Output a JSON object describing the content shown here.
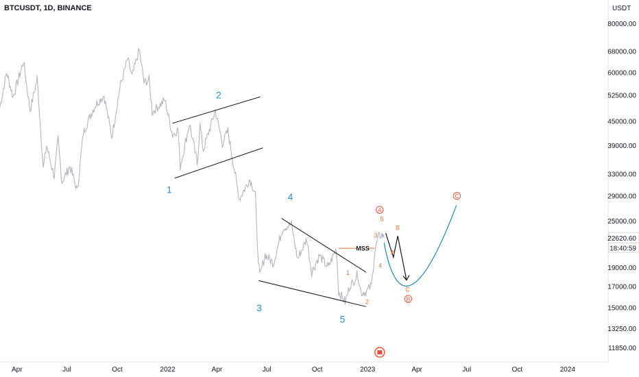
{
  "symbol_title": "BTCUSDT, 1D, BINANCE",
  "currency_label": "USDT",
  "chart_data": {
    "type": "line",
    "title": "BTCUSDT, 1D, BINANCE",
    "ylabel": "USDT",
    "y_scale": "log",
    "ylim": [
      10900,
      92000
    ],
    "xlim": [
      "2021-03-01",
      "2024-03-15"
    ],
    "x_ticks": [
      {
        "date": "2021-04-01",
        "label": "Apr"
      },
      {
        "date": "2021-07-01",
        "label": "Jul"
      },
      {
        "date": "2021-10-01",
        "label": "Oct"
      },
      {
        "date": "2022-01-01",
        "label": "2022"
      },
      {
        "date": "2022-04-01",
        "label": "Apr"
      },
      {
        "date": "2022-07-01",
        "label": "Jul"
      },
      {
        "date": "2022-10-01",
        "label": "Oct"
      },
      {
        "date": "2023-01-01",
        "label": "2023"
      },
      {
        "date": "2023-04-01",
        "label": "Apr"
      },
      {
        "date": "2023-07-01",
        "label": "Jul"
      },
      {
        "date": "2023-10-01",
        "label": "Oct"
      },
      {
        "date": "2024-01-01",
        "label": "2024"
      }
    ],
    "y_ticks": [
      80000,
      68000,
      60000,
      52500,
      45000,
      39000,
      33000,
      29000,
      25000,
      19000,
      17000,
      15000,
      13250,
      11850
    ],
    "y_tick_labels": [
      "80000.00",
      "68000.00",
      "60000.00",
      "52500.00",
      "45000.00",
      "39000.00",
      "33000.00",
      "29000.00",
      "25000.00",
      "19000.00",
      "17000.00",
      "15000.00",
      "13250.00",
      "11850.00"
    ],
    "last_price": {
      "value": 22620.6,
      "label": "22620.60",
      "countdown": "18:40:59",
      "color": "#131722"
    },
    "series": [
      {
        "color": "#b2b5be",
        "points": [
          [
            "2021-03-01",
            49000
          ],
          [
            "2021-03-13",
            60000
          ],
          [
            "2021-03-25",
            52000
          ],
          [
            "2021-04-13",
            64000
          ],
          [
            "2021-04-25",
            48000
          ],
          [
            "2021-05-08",
            58000
          ],
          [
            "2021-05-19",
            34000
          ],
          [
            "2021-05-25",
            39000
          ],
          [
            "2021-06-08",
            32500
          ],
          [
            "2021-06-15",
            40500
          ],
          [
            "2021-06-22",
            31500
          ],
          [
            "2021-07-07",
            34500
          ],
          [
            "2021-07-20",
            29800
          ],
          [
            "2021-07-31",
            42000
          ],
          [
            "2021-08-14",
            47000
          ],
          [
            "2021-08-22",
            49500
          ],
          [
            "2021-09-07",
            52500
          ],
          [
            "2021-09-21",
            41000
          ],
          [
            "2021-10-06",
            55000
          ],
          [
            "2021-10-20",
            65000
          ],
          [
            "2021-10-28",
            58500
          ],
          [
            "2021-11-10",
            68500
          ],
          [
            "2021-11-19",
            56500
          ],
          [
            "2021-11-28",
            57500
          ],
          [
            "2021-12-04",
            47500
          ],
          [
            "2021-12-27",
            51000
          ],
          [
            "2022-01-10",
            41500
          ],
          [
            "2022-01-20",
            43000
          ],
          [
            "2022-01-24",
            34500
          ],
          [
            "2022-02-10",
            44500
          ],
          [
            "2022-02-24",
            35000
          ],
          [
            "2022-03-01",
            44000
          ],
          [
            "2022-03-07",
            38000
          ],
          [
            "2022-03-29",
            48000
          ],
          [
            "2022-04-11",
            39500
          ],
          [
            "2022-04-21",
            42500
          ],
          [
            "2022-05-09",
            30000
          ],
          [
            "2022-05-12",
            28500
          ],
          [
            "2022-05-31",
            32000
          ],
          [
            "2022-06-10",
            29500
          ],
          [
            "2022-06-13",
            22500
          ],
          [
            "2022-06-18",
            18000
          ],
          [
            "2022-06-28",
            20500
          ],
          [
            "2022-07-13",
            19500
          ],
          [
            "2022-07-30",
            24000
          ],
          [
            "2022-08-15",
            24500
          ],
          [
            "2022-08-26",
            20000
          ],
          [
            "2022-09-12",
            22500
          ],
          [
            "2022-09-21",
            18500
          ],
          [
            "2022-10-05",
            20400
          ],
          [
            "2022-10-21",
            19000
          ],
          [
            "2022-11-05",
            21300
          ],
          [
            "2022-11-09",
            16500
          ],
          [
            "2022-11-21",
            15500
          ],
          [
            "2022-11-30",
            17150
          ],
          [
            "2022-12-05",
            17400
          ],
          [
            "2022-12-14",
            18300
          ],
          [
            "2022-12-20",
            16400
          ],
          [
            "2022-12-30",
            16500
          ],
          [
            "2023-01-08",
            17100
          ],
          [
            "2023-01-14",
            20900
          ],
          [
            "2023-01-21",
            22800
          ],
          [
            "2023-01-27",
            23100
          ],
          [
            "2023-01-31",
            22620.6
          ]
        ]
      }
    ],
    "annotations": {
      "blue_labels": [
        {
          "text": "1",
          "date": "2022-01-04",
          "price": 29500
        },
        {
          "text": "2",
          "date": "2022-04-04",
          "price": 51500
        },
        {
          "text": "3",
          "date": "2022-06-17",
          "price": 14700
        },
        {
          "text": "4",
          "date": "2022-08-13",
          "price": 28300
        },
        {
          "text": "5",
          "date": "2022-11-16",
          "price": 13750
        }
      ],
      "orange_labels": [
        {
          "text": "1",
          "date": "2022-11-26",
          "price": 18200
        },
        {
          "text": "2",
          "date": "2022-12-31",
          "price": 15350
        },
        {
          "text": "3",
          "date": "2023-01-16",
          "price": 22700
        },
        {
          "text": "4",
          "date": "2023-01-24",
          "price": 19000
        },
        {
          "text": "5",
          "date": "2023-01-27",
          "price": 25000
        },
        {
          "text": "A",
          "date": "2023-02-16",
          "price": 20500
        },
        {
          "text": "B",
          "date": "2023-02-25",
          "price": 23700
        },
        {
          "text": "C",
          "date": "2023-03-15",
          "price": 16500
        }
      ],
      "circled_labels": [
        {
          "text": "A",
          "date": "2023-01-23",
          "price": 26700
        },
        {
          "text": "B",
          "date": "2023-03-16",
          "price": 15800
        },
        {
          "text": "C",
          "date": "2023-06-13",
          "price": 29000
        }
      ],
      "mss_label": "MSS",
      "mss_date": "2022-12-23",
      "mss_price": 21300
    },
    "colors": {
      "price_line": "#b2b5be",
      "wave_blue": "#2a8fc7",
      "wave_orange": "#f2722c",
      "circled_red": "#e8503a",
      "channel": "#131722",
      "projection_curve": "#2b8fb3"
    }
  }
}
